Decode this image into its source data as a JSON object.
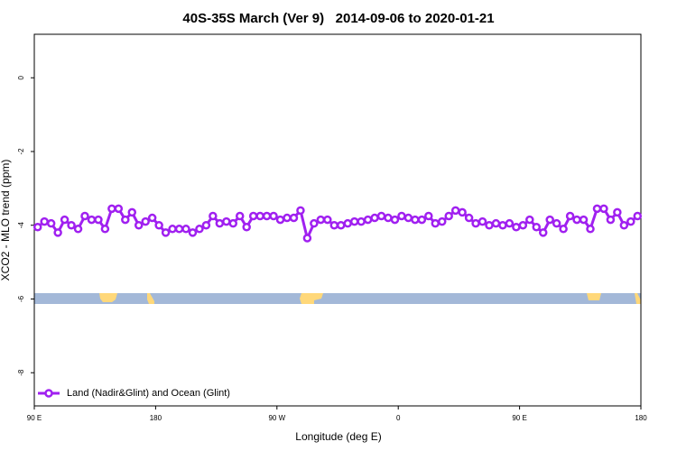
{
  "chart_data": {
    "type": "line",
    "title": "40S-35S March (Ver 9)   2014-09-06 to 2020-01-21",
    "x_label": "Longitude (deg E)",
    "y_label": "XCO2 - MLO trend (ppm)",
    "x": [
      92.5,
      97.5,
      102.5,
      107.5,
      112.5,
      117.5,
      122.5,
      127.5,
      132.5,
      137.5,
      142.5,
      147.5,
      152.5,
      157.5,
      162.5,
      167.5,
      172.5,
      177.5,
      182.5,
      187.5,
      192.5,
      197.5,
      202.5,
      207.5,
      212.5,
      217.5,
      222.5,
      227.5,
      232.5,
      237.5,
      242.5,
      247.5,
      252.5,
      257.5,
      262.5,
      267.5,
      272.5,
      277.5,
      282.5,
      287.5,
      292.5,
      297.5,
      302.5,
      307.5,
      312.5,
      317.5,
      322.5,
      327.5,
      332.5,
      337.5,
      342.5,
      347.5,
      352.5,
      357.5,
      362.5,
      367.5,
      372.5,
      377.5,
      382.5,
      387.5,
      392.5,
      397.5,
      402.5,
      407.5,
      412.5,
      417.5,
      422.5,
      427.5,
      432.5,
      437.5,
      442.5,
      447.5,
      452.5,
      457.5,
      462.5,
      467.5,
      472.5,
      477.5,
      482.5,
      487.5,
      492.5,
      497.5,
      502.5,
      507.5,
      512.5,
      517.5,
      522.5,
      527.5,
      532.5,
      537.5
    ],
    "series": [
      {
        "name": "Land (Nadir&Glint) and Ocean (Glint)",
        "color": "#a020f0",
        "values": [
          -4.05,
          -3.9,
          -3.95,
          -4.2,
          -3.85,
          -4.0,
          -4.1,
          -3.75,
          -3.85,
          -3.85,
          -4.1,
          -3.55,
          -3.55,
          -3.85,
          -3.65,
          -4.0,
          -3.9,
          -3.8,
          -4.0,
          -4.2,
          -4.1,
          -4.1,
          -4.1,
          -4.2,
          -4.1,
          -4.0,
          -3.75,
          -3.95,
          -3.9,
          -3.95,
          -3.75,
          -4.05,
          -3.75,
          -3.75,
          -3.75,
          -3.75,
          -3.85,
          -3.8,
          -3.8,
          -3.6,
          -4.35,
          -3.95,
          -3.85,
          -3.85,
          -4.0,
          -4.0,
          -3.95,
          -3.9,
          -3.9,
          -3.85,
          -3.8,
          -3.75,
          -3.8,
          -3.85,
          -3.75,
          -3.8,
          -3.85,
          -3.85,
          -3.75,
          -3.95,
          -3.9,
          -3.75,
          -3.6,
          -3.65,
          -3.8,
          -3.95,
          -3.9,
          -4.0,
          -3.95,
          -4.0,
          -3.95,
          -4.05,
          -4.0,
          -3.85,
          -4.05,
          -4.2,
          -3.85,
          -3.95,
          -4.1,
          -3.75,
          -3.85,
          -3.85,
          -4.1,
          -3.55,
          -3.55,
          -3.85,
          -3.65,
          -4.0,
          -3.9,
          -3.75
        ]
      }
    ],
    "xlim": [
      90,
      540
    ],
    "xticks": [
      {
        "value": 90,
        "label": "90 E"
      },
      180,
      {
        "value": 270,
        "label": "90 W"
      },
      {
        "value": 360,
        "label": "0"
      },
      {
        "value": 450,
        "label": "90 E"
      },
      {
        "value": 540,
        "label": "180"
      }
    ],
    "ylim": [
      -8.9,
      1.18
    ],
    "yticks": [
      0,
      -2,
      -4,
      -6,
      -8
    ],
    "legend": "bottom-left"
  }
}
